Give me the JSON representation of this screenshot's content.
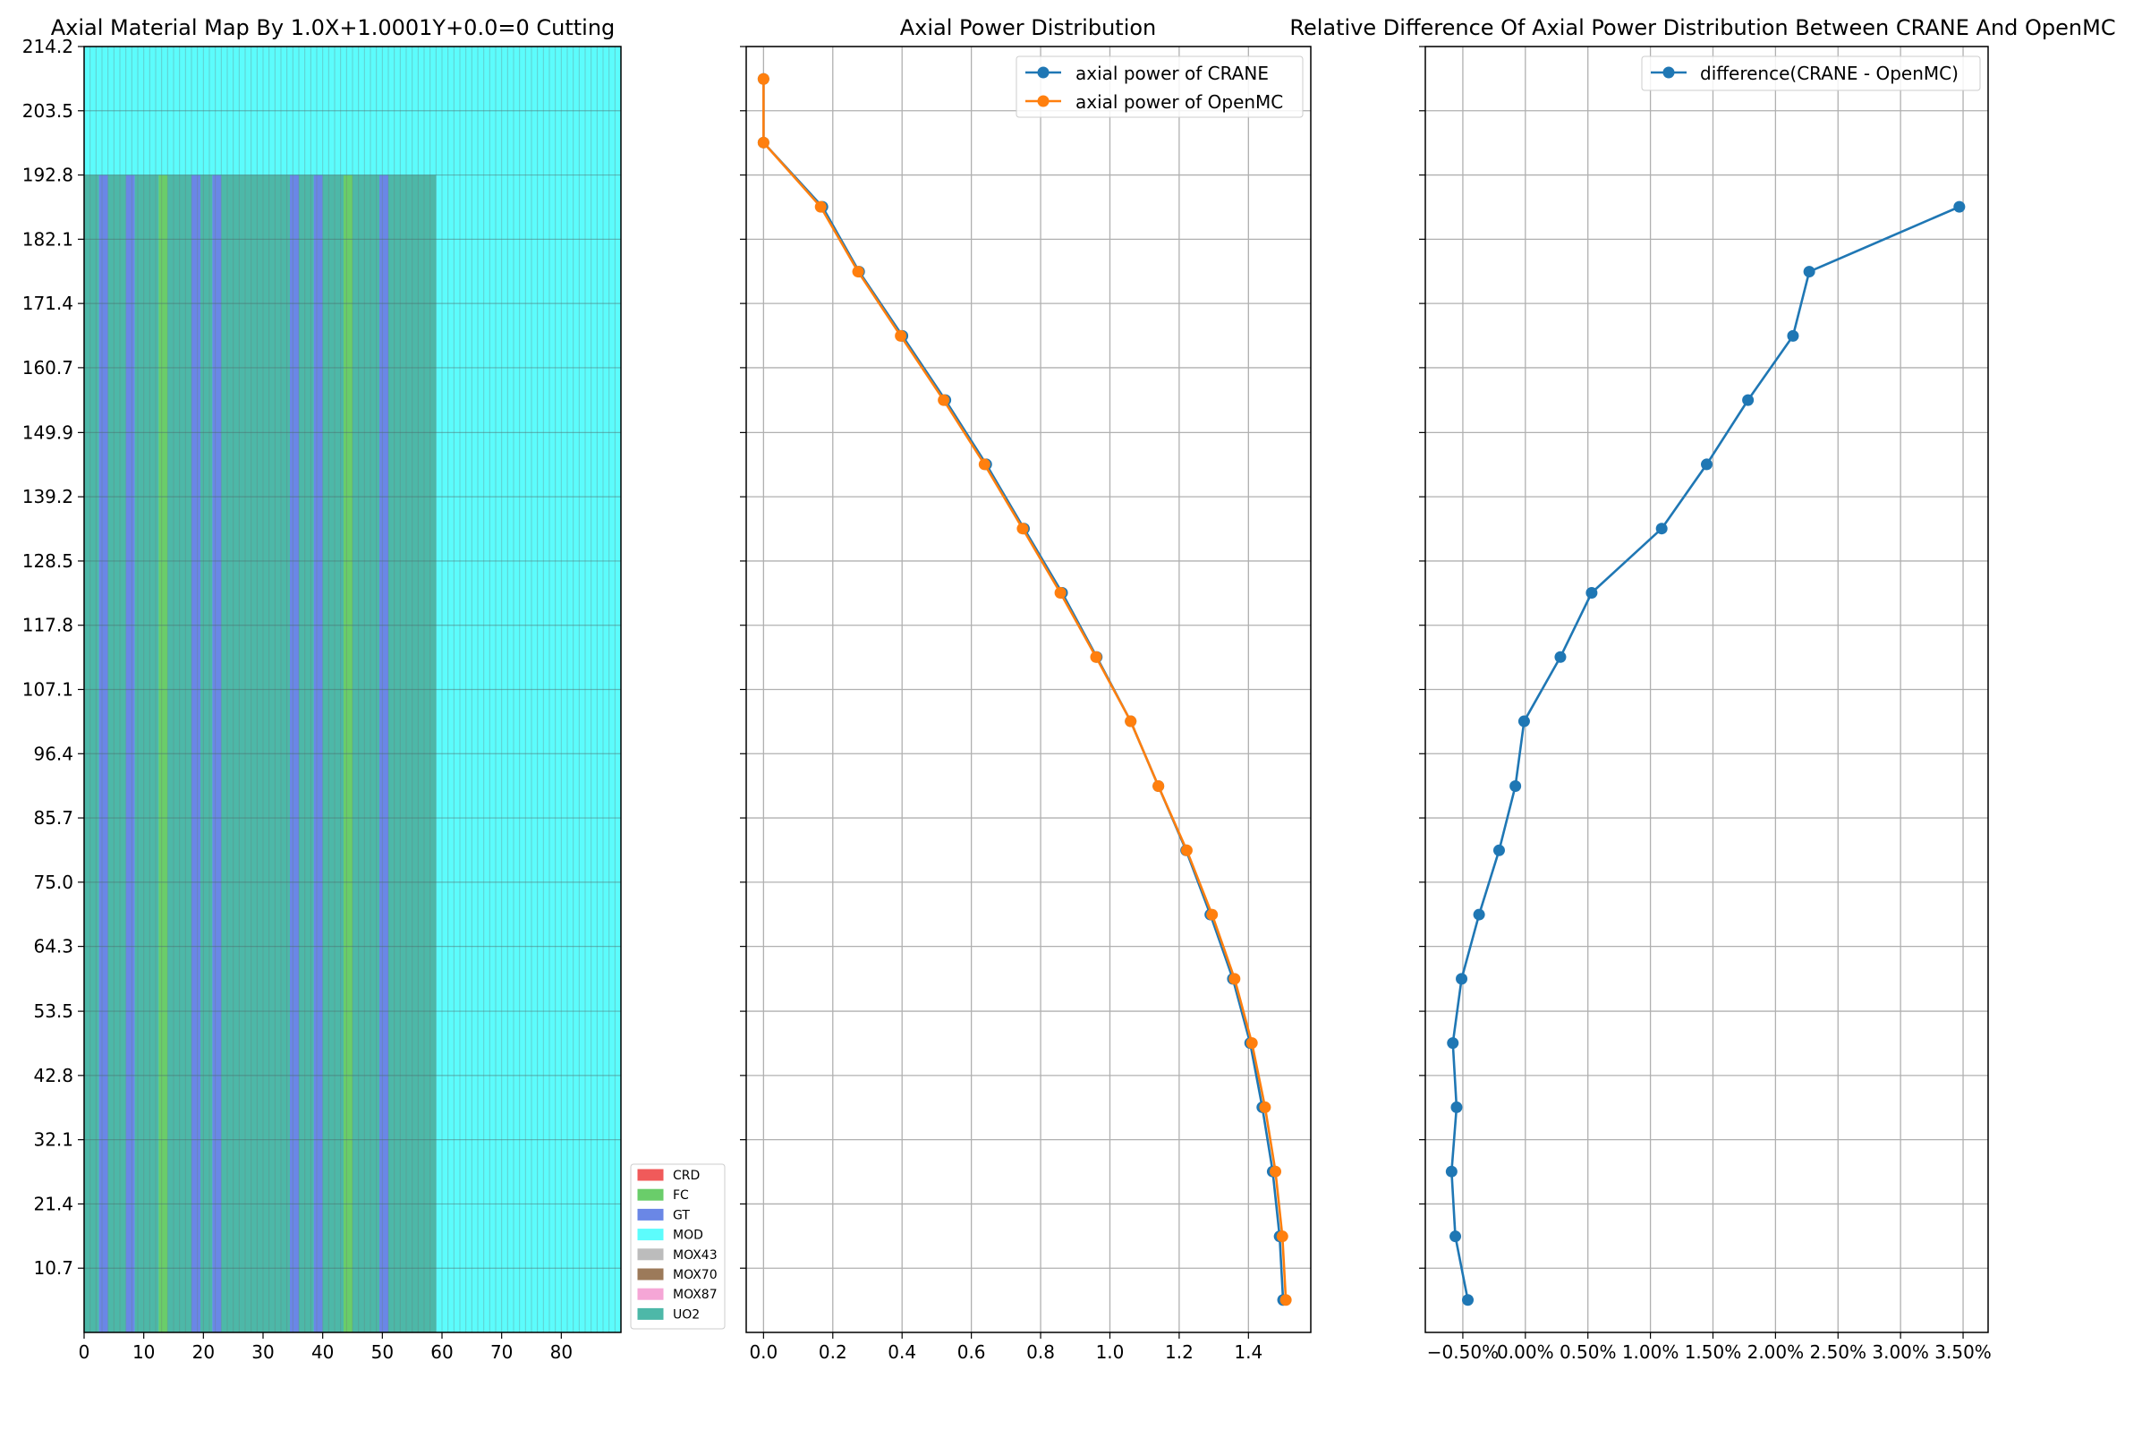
{
  "chart_data": [
    {
      "type": "heatmap",
      "title": "Axial Material Map By 1.0X+1.0001Y+0.0=0 Cutting",
      "xlim": [
        0,
        90
      ],
      "x_ticks": [
        0,
        10,
        20,
        30,
        40,
        50,
        60,
        70,
        80
      ],
      "ylim": [
        0,
        214.2
      ],
      "y_ticks": [
        10.7,
        21.4,
        32.1,
        42.8,
        53.5,
        64.3,
        75.0,
        85.7,
        96.4,
        107.1,
        117.8,
        128.5,
        139.2,
        149.9,
        160.7,
        171.4,
        182.1,
        192.8,
        203.5,
        214.2
      ],
      "y_tick_labels": [
        "10.7",
        "21.4",
        "32.1",
        "42.8",
        "53.5",
        "64.3",
        "75.0",
        "85.7",
        "96.4",
        "107.1",
        "117.8",
        "128.5",
        "139.2",
        "149.9",
        "160.7",
        "171.4",
        "182.1",
        "192.8",
        "203.5",
        "214.2"
      ],
      "core_top": 192.8,
      "core_right": 59,
      "legend": {
        "position": "outside-lower-right",
        "items": [
          {
            "label": "CRD",
            "color": "#f05a5a"
          },
          {
            "label": "FC",
            "color": "#6acd6a"
          },
          {
            "label": "GT",
            "color": "#6a87e6"
          },
          {
            "label": "MOD",
            "color": "#5cfcfc"
          },
          {
            "label": "MOX43",
            "color": "#bcbcbc"
          },
          {
            "label": "MOX70",
            "color": "#9c7a5a"
          },
          {
            "label": "MOX87",
            "color": "#f5a6d6"
          },
          {
            "label": "UO2",
            "color": "#4db8a8"
          }
        ]
      },
      "columns": [
        {
          "x0": 0,
          "x1": 2.5,
          "material": "UO2"
        },
        {
          "x0": 2.5,
          "x1": 4,
          "material": "GT"
        },
        {
          "x0": 4,
          "x1": 7,
          "material": "UO2"
        },
        {
          "x0": 7,
          "x1": 8.5,
          "material": "GT"
        },
        {
          "x0": 8.5,
          "x1": 12.5,
          "material": "UO2"
        },
        {
          "x0": 12.5,
          "x1": 14,
          "material": "FC"
        },
        {
          "x0": 14,
          "x1": 18,
          "material": "UO2"
        },
        {
          "x0": 18,
          "x1": 19.5,
          "material": "GT"
        },
        {
          "x0": 19.5,
          "x1": 21.5,
          "material": "UO2"
        },
        {
          "x0": 21.5,
          "x1": 23,
          "material": "GT"
        },
        {
          "x0": 23,
          "x1": 34.5,
          "material": "UO2"
        },
        {
          "x0": 34.5,
          "x1": 36,
          "material": "GT"
        },
        {
          "x0": 36,
          "x1": 38.5,
          "material": "UO2"
        },
        {
          "x0": 38.5,
          "x1": 40,
          "material": "GT"
        },
        {
          "x0": 40,
          "x1": 43.5,
          "material": "UO2"
        },
        {
          "x0": 43.5,
          "x1": 45,
          "material": "FC"
        },
        {
          "x0": 45,
          "x1": 49.5,
          "material": "UO2"
        },
        {
          "x0": 49.5,
          "x1": 51,
          "material": "GT"
        },
        {
          "x0": 51,
          "x1": 59,
          "material": "UO2"
        }
      ]
    },
    {
      "type": "line",
      "title": "Axial Power Distribution",
      "xlim": [
        -0.05,
        1.58
      ],
      "x_ticks": [
        0.0,
        0.2,
        0.4,
        0.6,
        0.8,
        1.0,
        1.2,
        1.4
      ],
      "x_tick_labels": [
        "0.0",
        "0.2",
        "0.4",
        "0.6",
        "0.8",
        "1.0",
        "1.2",
        "1.4"
      ],
      "ylim": [
        0,
        214.2
      ],
      "grid": true,
      "legend_position": "upper-right",
      "series": [
        {
          "name": "axial power of CRANE",
          "color": "#1f77b4",
          "y": [
            208.8,
            198.2,
            187.5,
            176.7,
            166.0,
            155.3,
            144.6,
            133.9,
            123.2,
            112.5,
            101.8,
            91.0,
            80.3,
            69.6,
            58.9,
            48.2,
            37.5,
            26.8,
            16.0,
            5.4
          ],
          "x": [
            0.0,
            0.0,
            0.17,
            0.276,
            0.401,
            0.525,
            0.643,
            0.752,
            0.862,
            0.962,
            1.06,
            1.14,
            1.22,
            1.29,
            1.355,
            1.405,
            1.44,
            1.47,
            1.49,
            1.5
          ]
        },
        {
          "name": "axial power of OpenMC",
          "color": "#ff7f0e",
          "y": [
            208.8,
            198.2,
            187.5,
            176.7,
            166.0,
            155.3,
            144.6,
            133.9,
            123.2,
            112.5,
            101.8,
            91.0,
            80.3,
            69.6,
            58.9,
            48.2,
            37.5,
            26.8,
            16.0,
            5.4
          ],
          "x": [
            0.0,
            0.0,
            0.165,
            0.273,
            0.396,
            0.52,
            0.638,
            0.748,
            0.857,
            0.96,
            1.06,
            1.14,
            1.222,
            1.295,
            1.36,
            1.41,
            1.448,
            1.478,
            1.498,
            1.508
          ]
        }
      ]
    },
    {
      "type": "line",
      "title": "Relative Difference Of Axial Power Distribution Between CRANE And OpenMC",
      "xlim": [
        -0.8,
        3.7
      ],
      "x_ticks": [
        -0.5,
        0.0,
        0.5,
        1.0,
        1.5,
        2.0,
        2.5,
        3.0,
        3.5
      ],
      "x_tick_labels": [
        "−0.50%",
        "0.00%",
        "0.50%",
        "1.00%",
        "1.50%",
        "2.00%",
        "2.50%",
        "3.00%",
        "3.50%"
      ],
      "ylim": [
        0,
        214.2
      ],
      "grid": true,
      "legend_position": "upper-right",
      "series": [
        {
          "name": "difference(CRANE - OpenMC)",
          "color": "#1f77b4",
          "y": [
            187.5,
            176.7,
            166.0,
            155.3,
            144.6,
            133.9,
            123.2,
            112.5,
            101.8,
            91.0,
            80.3,
            69.6,
            58.9,
            48.2,
            37.5,
            26.8,
            16.0,
            5.4
          ],
          "x": [
            3.47,
            2.27,
            2.14,
            1.78,
            1.45,
            1.09,
            0.53,
            0.28,
            -0.01,
            -0.08,
            -0.21,
            -0.37,
            -0.51,
            -0.58,
            -0.55,
            -0.59,
            -0.56,
            -0.46
          ]
        }
      ]
    }
  ]
}
